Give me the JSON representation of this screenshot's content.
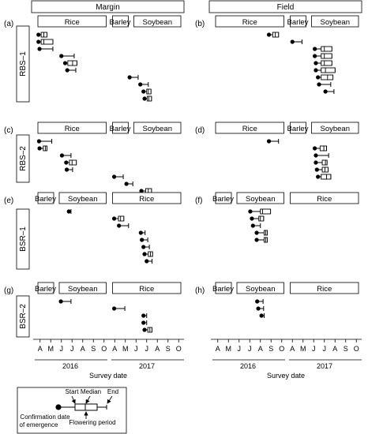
{
  "chart_data": {
    "type": "timeline",
    "title": "",
    "xlabel": "Survey date",
    "x_ticks": [
      "A",
      "M",
      "J",
      "J",
      "A",
      "S",
      "O",
      "A",
      "M",
      "J",
      "J",
      "A",
      "S",
      "O"
    ],
    "x_years": [
      "2016",
      "2017"
    ],
    "columns": [
      "Margin",
      "Field"
    ],
    "rows": [
      "RBS–1",
      "RBS–2",
      "BSR–1",
      "BSR–2"
    ],
    "panels": [
      {
        "id": "(a)",
        "row": 0,
        "col": 0,
        "crops": [
          {
            "label": "Rice",
            "start": 0,
            "end": 7
          },
          {
            "label": "Barley",
            "start": 7,
            "end": 9
          },
          {
            "label": "Soybean",
            "start": 9,
            "end": 14
          }
        ],
        "items": [
          {
            "emerg": 0.35,
            "start": 0.6,
            "median": 0.85,
            "end": 1.15
          },
          {
            "emerg": 0.35,
            "start": 0.6,
            "median": 0.85,
            "end": 1.7
          },
          {
            "emerg": 0.45,
            "end": 1.7
          },
          {
            "emerg": 2.5,
            "end": 3.7
          },
          {
            "emerg": 2.85,
            "start": 3.1,
            "median": 3.55,
            "end": 3.95
          },
          {
            "emerg": 3.05,
            "end": 3.85
          },
          {
            "emerg": 8.9,
            "end": 9.7
          },
          {
            "emerg": 9.9,
            "end": 10.65
          },
          {
            "emerg": 10.2,
            "start": 10.5,
            "median": 10.65,
            "end": 10.9
          },
          {
            "emerg": 10.3,
            "start": 10.55,
            "median": 10.7,
            "end": 10.95
          }
        ]
      },
      {
        "id": "(b)",
        "row": 0,
        "col": 1,
        "crops": [
          {
            "label": "Rice",
            "start": 0,
            "end": 7
          },
          {
            "label": "Barley",
            "start": 7,
            "end": 9
          },
          {
            "label": "Soybean",
            "start": 9,
            "end": 14
          }
        ],
        "items": [
          {
            "emerg": 5.3,
            "start": 5.65,
            "median": 5.9,
            "end": 6.2
          },
          {
            "emerg": 7.5,
            "end": 8.4
          },
          {
            "emerg": 9.6,
            "start": 10.2,
            "median": 10.5,
            "end": 11.2
          },
          {
            "emerg": 9.6,
            "start": 10.2,
            "median": 10.5,
            "end": 11.2
          },
          {
            "emerg": 9.7,
            "start": 10.2,
            "median": 10.5,
            "end": 11.2
          },
          {
            "emerg": 9.7,
            "start": 10.2,
            "median": 10.6,
            "end": 11.5
          },
          {
            "emerg": 9.9,
            "start": 10.2,
            "median": 10.8,
            "end": 11.3
          },
          {
            "emerg": 10.0,
            "end": 11.1
          },
          {
            "emerg": 10.6,
            "end": 11.4
          }
        ]
      },
      {
        "id": "(c)",
        "row": 1,
        "col": 0,
        "crops": [
          {
            "label": "Rice",
            "start": 0,
            "end": 7
          },
          {
            "label": "Barley",
            "start": 7,
            "end": 9
          },
          {
            "label": "Soybean",
            "start": 9,
            "end": 14
          }
        ],
        "items": [
          {
            "emerg": 0.4,
            "end": 1.6
          },
          {
            "emerg": 0.45,
            "start": 0.8,
            "median": 1.0,
            "end": 1.15
          },
          {
            "emerg": 2.55,
            "end": 3.4
          },
          {
            "emerg": 2.95,
            "start": 3.25,
            "median": 3.5,
            "end": 3.9
          },
          {
            "emerg": 3.0,
            "end": 3.55
          },
          {
            "emerg": 7.45,
            "end": 8.3
          },
          {
            "emerg": 8.6,
            "end": 9.2
          },
          {
            "emerg": 10.0,
            "start": 10.4,
            "median": 10.65,
            "end": 10.95
          },
          {
            "emerg": 10.0,
            "start": 10.4,
            "median": 10.65,
            "end": 10.95
          }
        ]
      },
      {
        "id": "(d)",
        "row": 1,
        "col": 1,
        "crops": [
          {
            "label": "Rice",
            "start": 0,
            "end": 7
          },
          {
            "label": "Barley",
            "start": 7,
            "end": 9
          },
          {
            "label": "Soybean",
            "start": 9,
            "end": 14
          }
        ],
        "items": [
          {
            "emerg": 5.3,
            "end": 6.2
          },
          {
            "emerg": 9.6,
            "start": 10.1,
            "median": 10.45,
            "end": 10.7
          },
          {
            "emerg": 9.7,
            "end": 10.9
          },
          {
            "emerg": 9.7,
            "start": 10.3,
            "median": 10.6,
            "end": 10.75
          },
          {
            "emerg": 9.8,
            "start": 10.3,
            "median": 10.55,
            "end": 10.85
          },
          {
            "emerg": 9.9,
            "start": 10.2,
            "median": 10.7,
            "end": 11.1
          }
        ]
      },
      {
        "id": "(e)",
        "row": 2,
        "col": 0,
        "crops": [
          {
            "label": "Barley",
            "start": 0,
            "end": 2
          },
          {
            "label": "Soybean",
            "start": 2,
            "end": 7
          },
          {
            "label": "Rice",
            "start": 7,
            "end": 14
          }
        ],
        "items": [
          {
            "emerg": 3.2,
            "end": 3.4
          },
          {
            "emerg": 7.45,
            "start": 7.85,
            "median": 8.05,
            "end": 8.35
          },
          {
            "emerg": 7.9,
            "end": 8.8
          },
          {
            "emerg": 9.95,
            "end": 10.35
          },
          {
            "emerg": 10.05,
            "end": 10.6
          },
          {
            "emerg": 10.2,
            "end": 10.75
          },
          {
            "emerg": 10.3,
            "start": 10.65,
            "median": 10.85,
            "end": 11.05
          },
          {
            "emerg": 10.5,
            "end": 11.0
          }
        ]
      },
      {
        "id": "(f)",
        "row": 2,
        "col": 1,
        "crops": [
          {
            "label": "Barley",
            "start": 0,
            "end": 2
          },
          {
            "label": "Soybean",
            "start": 2,
            "end": 7
          },
          {
            "label": "Rice",
            "start": 7,
            "end": 14
          }
        ],
        "items": [
          {
            "emerg": 3.55,
            "start": 4.5,
            "median": 4.7,
            "end": 5.45
          },
          {
            "emerg": 3.7,
            "start": 4.35,
            "median": 4.5,
            "end": 4.8
          },
          {
            "emerg": 3.8,
            "end": 4.5
          },
          {
            "emerg": 4.15,
            "start": 4.85,
            "median": 5.0,
            "end": 5.15
          },
          {
            "emerg": 4.15,
            "start": 4.85,
            "median": 5.0,
            "end": 5.15
          }
        ]
      },
      {
        "id": "(g)",
        "row": 3,
        "col": 0,
        "crops": [
          {
            "label": "Barley",
            "start": 0,
            "end": 2
          },
          {
            "label": "Soybean",
            "start": 2,
            "end": 7
          },
          {
            "label": "Rice",
            "start": 7,
            "end": 14
          }
        ],
        "items": [
          {
            "emerg": 2.45,
            "end": 3.4
          },
          {
            "emerg": 7.45,
            "end": 8.45
          },
          {
            "emerg": 10.2,
            "end": 10.5
          },
          {
            "emerg": 10.2,
            "end": 10.5
          },
          {
            "emerg": 10.3,
            "start": 10.6,
            "median": 10.8,
            "end": 11.0
          }
        ]
      },
      {
        "id": "(h)",
        "row": 3,
        "col": 1,
        "crops": [
          {
            "label": "Barley",
            "start": 0,
            "end": 2
          },
          {
            "label": "Soybean",
            "start": 2,
            "end": 7
          },
          {
            "label": "Rice",
            "start": 7,
            "end": 14
          }
        ],
        "items": [
          {
            "emerg": 4.2,
            "end": 4.75
          },
          {
            "emerg": 4.3,
            "end": 4.8
          },
          {
            "emerg": 4.6,
            "end": 4.85
          }
        ]
      }
    ],
    "legend": {
      "start": "Start",
      "median": "Median",
      "end": "End",
      "emergence_line1": "Confirmation date",
      "emergence_line2": "of emergence",
      "flowering": "Flowering period"
    }
  }
}
